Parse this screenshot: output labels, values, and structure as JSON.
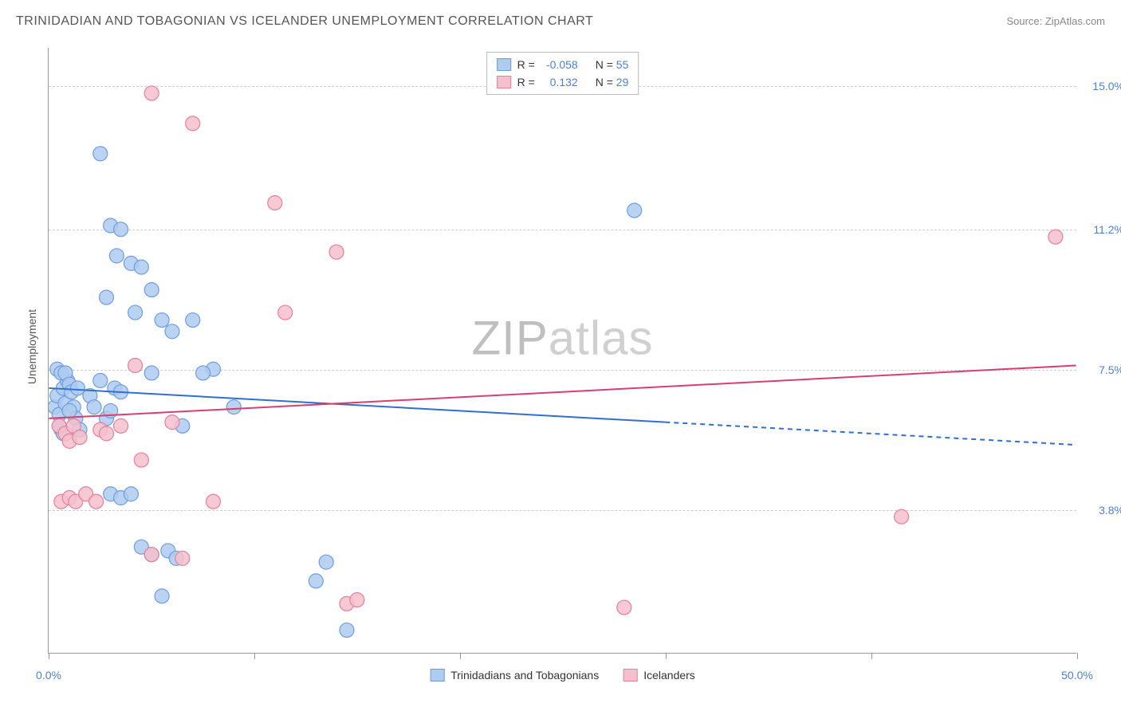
{
  "header": {
    "title": "TRINIDADIAN AND TOBAGONIAN VS ICELANDER UNEMPLOYMENT CORRELATION CHART",
    "source": "Source: ZipAtlas.com"
  },
  "chart": {
    "type": "scatter",
    "y_axis_label": "Unemployment",
    "xlim": [
      0,
      50
    ],
    "ylim": [
      0,
      16
    ],
    "x_ticks": [
      0,
      10,
      20,
      30,
      40,
      50
    ],
    "x_tick_labels": {
      "0": "0.0%",
      "50": "50.0%"
    },
    "y_grid": [
      3.8,
      7.5,
      11.2,
      15.0
    ],
    "y_tick_labels": [
      "3.8%",
      "7.5%",
      "11.2%",
      "15.0%"
    ],
    "background_color": "#ffffff",
    "grid_color": "#cccccc",
    "axis_color": "#999999",
    "tick_label_color": "#4a7fd8",
    "watermark": "ZIPatlas",
    "series": [
      {
        "name": "Trinidadians and Tobagonians",
        "marker_fill": "#aecbf0",
        "marker_stroke": "#6d9de0",
        "marker_radius": 9,
        "line_color": "#2f6fd0",
        "line_width": 2,
        "r": -0.058,
        "n": 55,
        "regression": {
          "x1": 0,
          "y1": 7.0,
          "x2_solid": 30,
          "y2_solid": 6.1,
          "x2_dash": 50,
          "y2_dash": 5.5
        },
        "points": [
          [
            0.3,
            6.5
          ],
          [
            0.4,
            6.8
          ],
          [
            0.5,
            6.3
          ],
          [
            0.6,
            5.9
          ],
          [
            0.7,
            7.0
          ],
          [
            0.8,
            6.6
          ],
          [
            0.9,
            7.2
          ],
          [
            0.4,
            7.5
          ],
          [
            0.6,
            7.4
          ],
          [
            0.8,
            7.4
          ],
          [
            1.0,
            7.1
          ],
          [
            1.2,
            6.5
          ],
          [
            1.1,
            6.9
          ],
          [
            1.3,
            6.2
          ],
          [
            0.5,
            6.0
          ],
          [
            0.7,
            5.8
          ],
          [
            1.0,
            6.4
          ],
          [
            1.4,
            7.0
          ],
          [
            1.5,
            5.9
          ],
          [
            2.0,
            6.8
          ],
          [
            2.2,
            6.5
          ],
          [
            2.5,
            7.2
          ],
          [
            2.8,
            6.2
          ],
          [
            3.0,
            6.4
          ],
          [
            3.2,
            7.0
          ],
          [
            3.5,
            6.9
          ],
          [
            3.0,
            11.3
          ],
          [
            3.5,
            11.2
          ],
          [
            2.5,
            13.2
          ],
          [
            4.0,
            10.3
          ],
          [
            4.5,
            10.2
          ],
          [
            5.0,
            9.6
          ],
          [
            4.2,
            9.0
          ],
          [
            5.5,
            8.8
          ],
          [
            6.0,
            8.5
          ],
          [
            2.8,
            9.4
          ],
          [
            3.3,
            10.5
          ],
          [
            5.0,
            7.4
          ],
          [
            3.0,
            4.2
          ],
          [
            3.5,
            4.1
          ],
          [
            4.0,
            4.2
          ],
          [
            4.5,
            2.8
          ],
          [
            5.0,
            2.6
          ],
          [
            5.5,
            1.5
          ],
          [
            13.5,
            2.4
          ],
          [
            14.5,
            0.6
          ],
          [
            13.0,
            1.9
          ],
          [
            7.0,
            8.8
          ],
          [
            8.0,
            7.5
          ],
          [
            9.0,
            6.5
          ],
          [
            6.5,
            6.0
          ],
          [
            7.5,
            7.4
          ],
          [
            5.8,
            2.7
          ],
          [
            6.2,
            2.5
          ],
          [
            28.5,
            11.7
          ]
        ]
      },
      {
        "name": "Icelanders",
        "marker_fill": "#f5c0cd",
        "marker_stroke": "#e57f9b",
        "marker_radius": 9,
        "line_color": "#d64070",
        "line_width": 2,
        "r": 0.132,
        "n": 29,
        "regression": {
          "x1": 0,
          "y1": 6.2,
          "x2_solid": 50,
          "y2_solid": 7.6,
          "x2_dash": 50,
          "y2_dash": 7.6
        },
        "points": [
          [
            0.5,
            6.0
          ],
          [
            0.8,
            5.8
          ],
          [
            1.0,
            5.6
          ],
          [
            1.2,
            6.0
          ],
          [
            1.5,
            5.7
          ],
          [
            0.6,
            4.0
          ],
          [
            1.0,
            4.1
          ],
          [
            1.3,
            4.0
          ],
          [
            1.8,
            4.2
          ],
          [
            2.3,
            4.0
          ],
          [
            2.5,
            5.9
          ],
          [
            3.5,
            6.0
          ],
          [
            2.8,
            5.8
          ],
          [
            4.2,
            7.6
          ],
          [
            6.0,
            6.1
          ],
          [
            8.0,
            4.0
          ],
          [
            4.5,
            5.1
          ],
          [
            5.0,
            2.6
          ],
          [
            6.5,
            2.5
          ],
          [
            5.0,
            14.8
          ],
          [
            7.0,
            14.0
          ],
          [
            11.0,
            11.9
          ],
          [
            11.5,
            9.0
          ],
          [
            14.0,
            10.6
          ],
          [
            14.5,
            1.3
          ],
          [
            15.0,
            1.4
          ],
          [
            28.0,
            1.2
          ],
          [
            41.5,
            3.6
          ],
          [
            49.0,
            11.0
          ]
        ]
      }
    ],
    "legend_top": {
      "r_label": "R =",
      "n_label": "N ="
    },
    "legend_bottom": [
      {
        "label": "Trinidadians and Tobagonians",
        "fill": "#aecbf0",
        "stroke": "#6d9de0"
      },
      {
        "label": "Icelanders",
        "fill": "#f5c0cd",
        "stroke": "#e57f9b"
      }
    ]
  }
}
